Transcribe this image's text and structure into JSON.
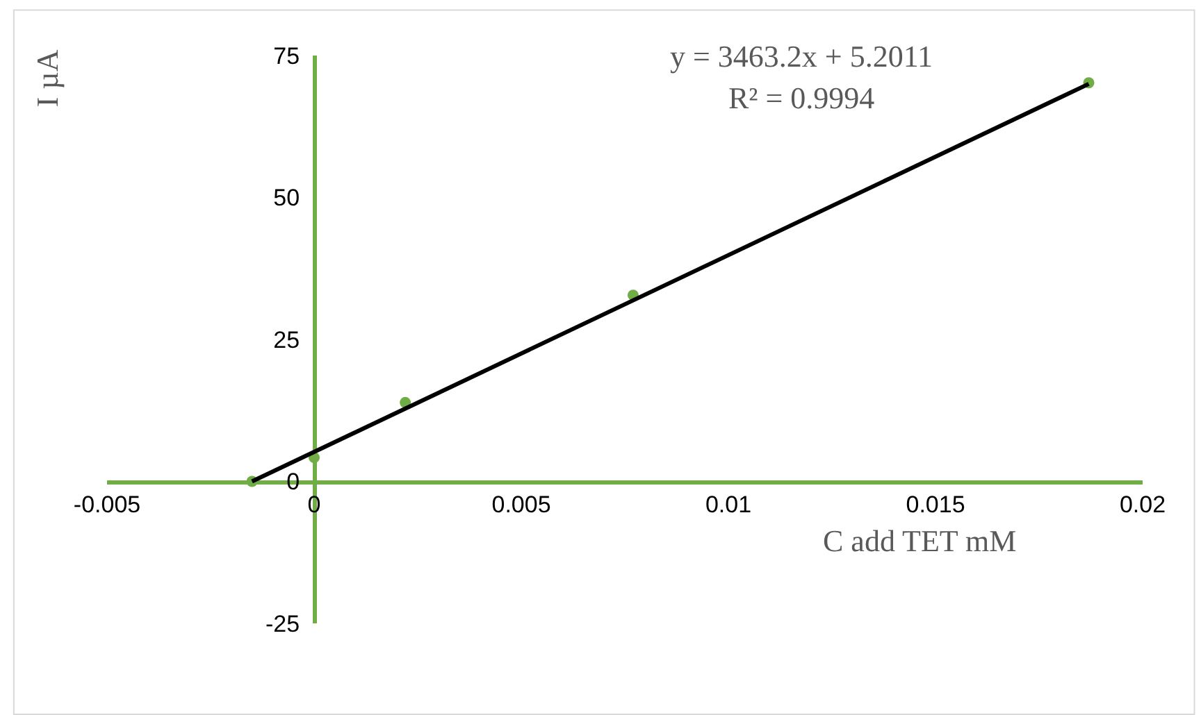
{
  "chart_data": {
    "type": "scatter",
    "xlabel": "C add TET mM",
    "ylabel": "I µA",
    "annotations": [
      "y = 3463.2x + 5.2011",
      "R² = 0.9994"
    ],
    "series": [
      {
        "color": "#70ad47",
        "marker": "circle",
        "x": [
          -0.0015,
          0,
          0.0022,
          0.0077,
          0.0187
        ],
        "values": [
          0,
          4.2,
          13.9,
          32.8,
          70.2
        ]
      },
      {
        "type": "line",
        "color": "#000000",
        "x": [
          -0.0015,
          0.0187
        ],
        "values": [
          0,
          70
        ]
      }
    ],
    "xlim": [
      -0.005,
      0.02
    ],
    "xticks": [
      -0.005,
      0,
      0.005,
      0.01,
      0.015,
      0.02
    ],
    "ylim": [
      -25,
      75
    ],
    "yticks": [
      -25,
      0,
      25,
      50,
      75
    ],
    "legend": false
  }
}
